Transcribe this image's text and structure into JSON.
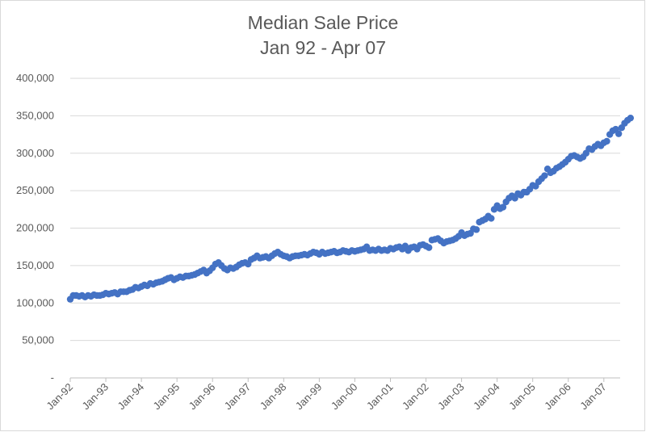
{
  "chart_data": {
    "type": "scatter",
    "title": "Median Sale Price",
    "subtitle": "Jan 92 - Apr 07",
    "xlabel": "",
    "ylabel": "",
    "x_tick_labels": [
      "Jan-92",
      "Jan-93",
      "Jan-94",
      "Jan-95",
      "Jan-96",
      "Jan-97",
      "Jan-98",
      "Jan-99",
      "Jan-00",
      "Jan-01",
      "Jan-02",
      "Jan-03",
      "Jan-04",
      "Jan-05",
      "Jan-06",
      "Jan-07"
    ],
    "y_tick_labels": [
      "-",
      "50,000",
      "100,000",
      "150,000",
      "200,000",
      "250,000",
      "300,000",
      "350,000",
      "400,000"
    ],
    "ylim": [
      0,
      400000
    ],
    "xlim": [
      "1992-01",
      "2007-04"
    ],
    "grid": true,
    "legend": "none",
    "marker_color": "#4472c4",
    "x_start": "1992-01",
    "x_step": "month",
    "values": [
      105000,
      110000,
      110000,
      109000,
      110000,
      108000,
      110000,
      109000,
      111000,
      110000,
      110000,
      111000,
      113000,
      112000,
      113000,
      114000,
      112000,
      115000,
      115000,
      115000,
      117000,
      118000,
      121000,
      120000,
      122000,
      124000,
      123000,
      126000,
      125000,
      127000,
      128000,
      129000,
      131000,
      133000,
      134000,
      131000,
      133000,
      135000,
      134000,
      136000,
      136000,
      137000,
      138000,
      140000,
      142000,
      144000,
      140000,
      143000,
      147000,
      152000,
      154000,
      150000,
      146000,
      144000,
      147000,
      146000,
      148000,
      151000,
      153000,
      154000,
      152000,
      158000,
      160000,
      163000,
      160000,
      161000,
      162000,
      160000,
      163000,
      166000,
      168000,
      165000,
      163000,
      162000,
      160000,
      162000,
      163000,
      163000,
      164000,
      165000,
      164000,
      166000,
      168000,
      167000,
      165000,
      168000,
      166000,
      167000,
      168000,
      169000,
      167000,
      168000,
      170000,
      169000,
      168000,
      170000,
      169000,
      170000,
      171000,
      172000,
      175000,
      170000,
      171000,
      170000,
      172000,
      170000,
      171000,
      170000,
      173000,
      172000,
      174000,
      175000,
      172000,
      176000,
      170000,
      174000,
      175000,
      172000,
      177000,
      178000,
      176000,
      174000,
      184000,
      185000,
      186000,
      183000,
      180000,
      182000,
      183000,
      184000,
      186000,
      189000,
      194000,
      190000,
      192000,
      193000,
      199000,
      198000,
      208000,
      210000,
      212000,
      216000,
      213000,
      225000,
      230000,
      226000,
      228000,
      235000,
      240000,
      243000,
      240000,
      246000,
      244000,
      248000,
      248000,
      252000,
      257000,
      256000,
      262000,
      266000,
      270000,
      279000,
      274000,
      276000,
      280000,
      282000,
      285000,
      288000,
      292000,
      296000,
      297000,
      295000,
      293000,
      295000,
      300000,
      306000,
      305000,
      309000,
      312000,
      310000,
      314000,
      316000,
      325000,
      330000,
      332000,
      326000,
      334000,
      340000,
      344000,
      347000
    ]
  }
}
